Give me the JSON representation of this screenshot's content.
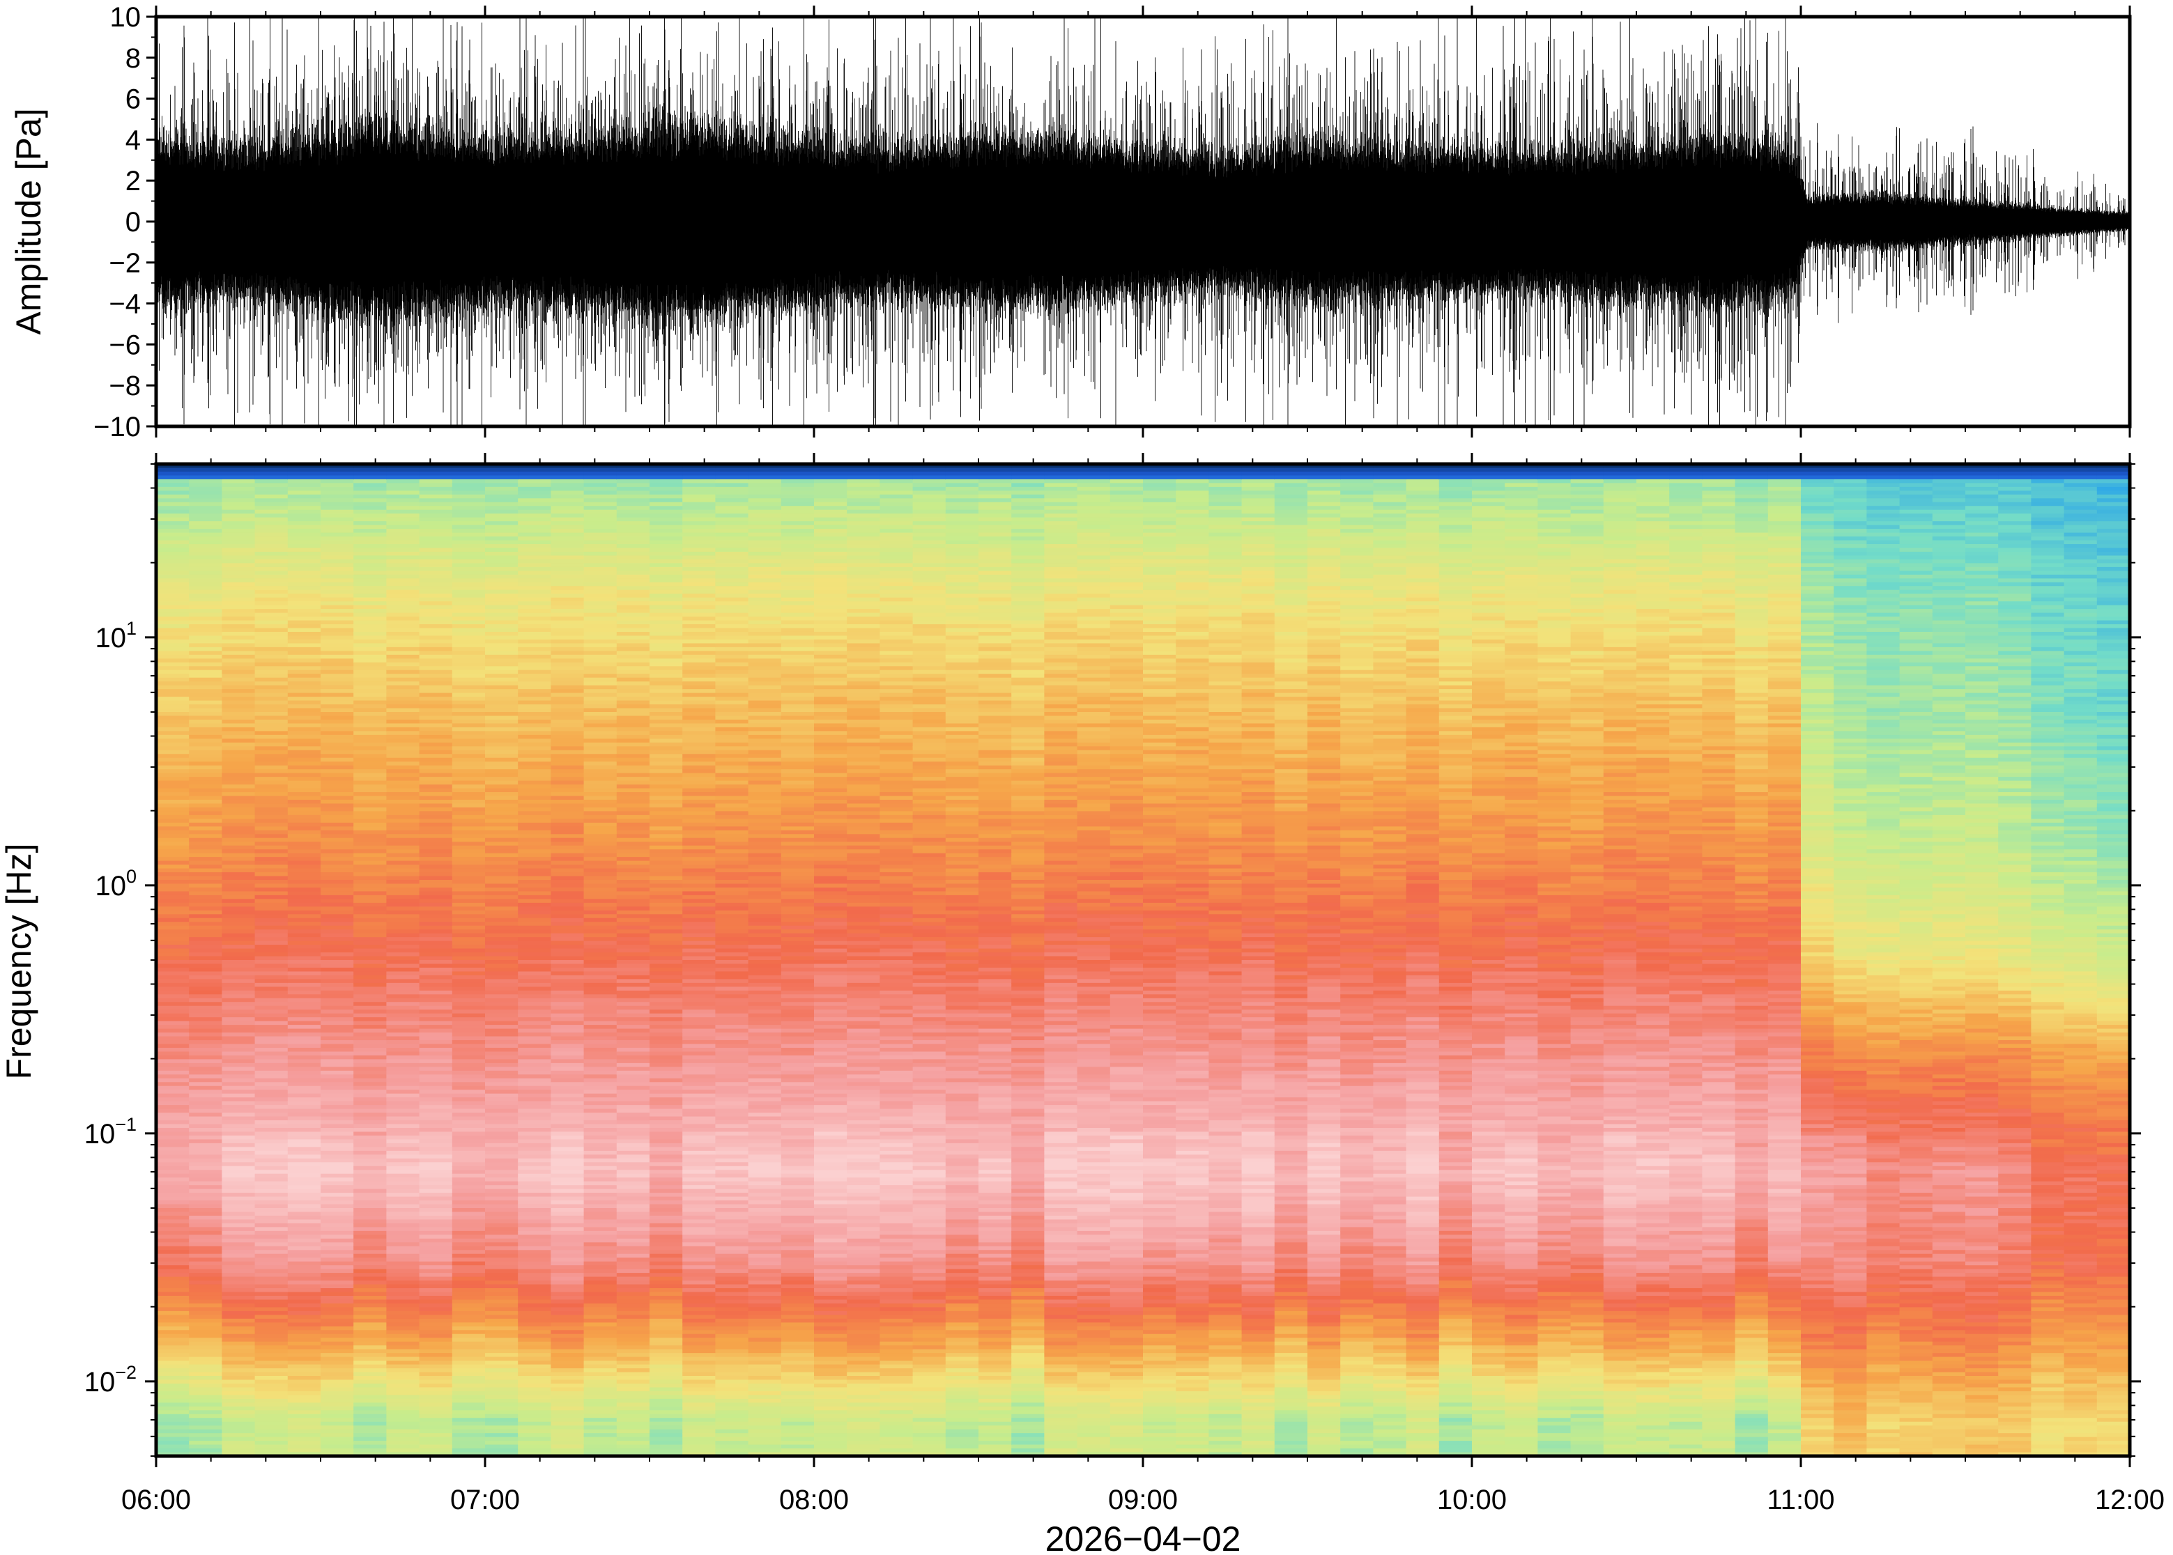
{
  "chart_data": [
    {
      "type": "line",
      "panel": "waveform",
      "title": "",
      "ylabel": "Amplitude [Pa]",
      "xlabel": "",
      "ylim": [
        -10,
        10
      ],
      "yticks": [
        10,
        8,
        6,
        4,
        2,
        0,
        -2,
        -4,
        -6,
        -8,
        -10
      ],
      "ytick_labels": [
        "10",
        "8",
        "6",
        "4",
        "2",
        "0",
        "−2",
        "−4",
        "−6",
        "−8",
        "−10"
      ],
      "xlim": [
        "06:00",
        "12:00"
      ],
      "grid": false,
      "color": "#000000",
      "series": [
        {
          "x_hours": [
            6.0,
            6.25,
            6.5,
            6.75,
            7.0,
            7.25,
            7.5,
            7.75,
            8.0,
            8.25,
            8.5,
            8.75,
            9.0,
            9.25,
            9.5,
            9.75,
            10.0,
            10.25,
            10.5,
            10.75,
            10.98,
            11.02,
            11.25,
            11.5,
            11.75,
            12.0
          ],
          "envelope_core": [
            4.0,
            3.6,
            4.2,
            4.5,
            4.0,
            4.0,
            4.5,
            4.5,
            3.8,
            3.6,
            4.0,
            4.0,
            3.5,
            3.2,
            3.8,
            3.6,
            3.5,
            3.4,
            3.8,
            4.0,
            3.5,
            1.2,
            1.3,
            1.0,
            0.7,
            0.4
          ],
          "envelope_peak": [
            9.0,
            9.0,
            10.0,
            10.0,
            10.0,
            10.0,
            10.0,
            10.0,
            10.0,
            9.5,
            9.5,
            9.5,
            9.0,
            8.5,
            9.5,
            9.0,
            10.0,
            10.0,
            10.0,
            10.0,
            9.5,
            4.5,
            4.0,
            4.0,
            3.0,
            1.5
          ]
        }
      ]
    },
    {
      "type": "heatmap",
      "panel": "spectrogram",
      "title": "",
      "ylabel": "Frequency [Hz]",
      "xlabel": "2026−04−02",
      "yscale": "log",
      "ylim": [
        0.005,
        50
      ],
      "yticks": [
        {
          "base": "10",
          "exp": "1"
        },
        {
          "base": "10",
          "exp": "0"
        },
        {
          "base": "10",
          "exp": "−1"
        },
        {
          "base": "10",
          "exp": "−2"
        }
      ],
      "xticks": [
        "06:00",
        "07:00",
        "08:00",
        "09:00",
        "10:00",
        "11:00",
        "12:00"
      ],
      "colormap": [
        "#08306b",
        "#1e5cd6",
        "#2fa8e6",
        "#73dcc8",
        "#c8ec8c",
        "#f3e27a",
        "#f6a64a",
        "#f26a4c",
        "#f5a0a0",
        "#fbd0d0"
      ],
      "time_columns": 60,
      "band_center_frequency_hz": [
        0.007,
        0.015,
        0.03,
        0.07,
        0.2,
        0.5,
        1.5,
        5,
        15,
        40
      ],
      "band_level_before_11h": [
        3.9,
        6.0,
        7.6,
        8.6,
        7.8,
        7.1,
        6.3,
        5.6,
        4.8,
        3.6
      ],
      "band_level_after_11h": [
        5.2,
        6.4,
        7.3,
        7.6,
        6.4,
        4.8,
        4.0,
        3.5,
        3.2,
        2.6
      ]
    }
  ]
}
